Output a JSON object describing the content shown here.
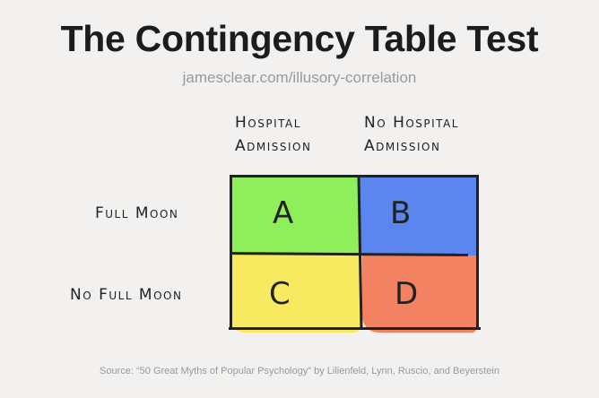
{
  "title": "The Contingency Table Test",
  "url": "jamesclear.com/illusory-correlation",
  "columns": [
    {
      "line1": "Hospital",
      "line2": "Admission"
    },
    {
      "line1": "No Hospital",
      "line2": "Admission"
    }
  ],
  "rows": [
    "Full Moon",
    "No Full Moon"
  ],
  "cells": [
    {
      "label": "A",
      "color": "#8fef5a"
    },
    {
      "label": "B",
      "color": "#5b86f0"
    },
    {
      "label": "C",
      "color": "#f8ea60"
    },
    {
      "label": "D",
      "color": "#f28261"
    }
  ],
  "source": "Source: “50 Great Myths of Popular Psychology” by Lilienfeld, Lynn, Ruscio, and Beyerstein"
}
